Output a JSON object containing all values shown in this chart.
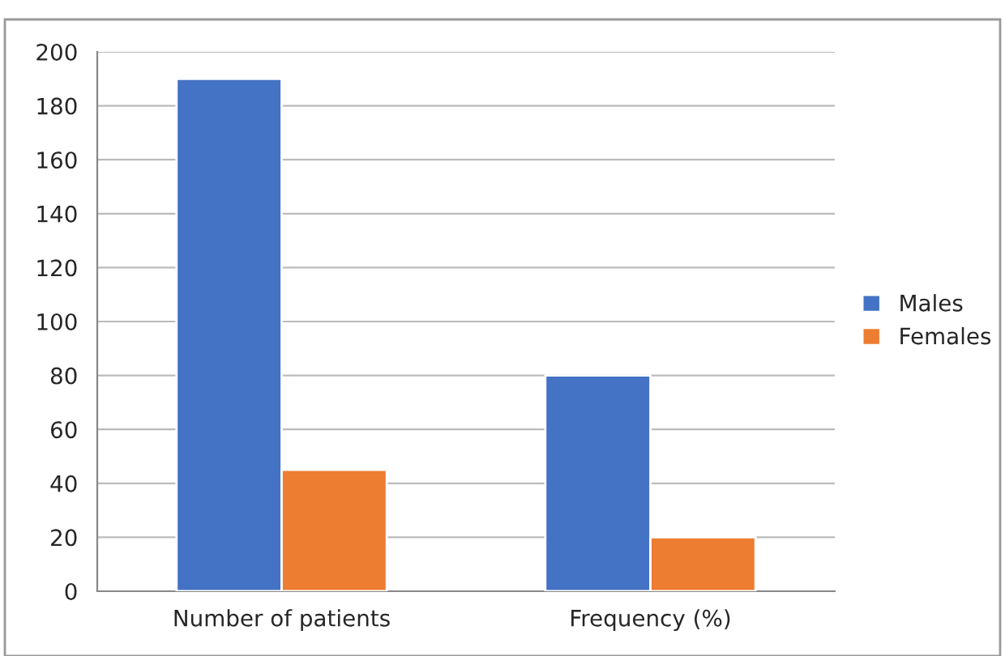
{
  "chart_data": {
    "type": "bar",
    "categories": [
      "Number of patients",
      "Frequency (%)"
    ],
    "series": [
      {
        "name": "Males",
        "color": "#4472c4",
        "values": [
          190,
          80
        ]
      },
      {
        "name": "Females",
        "color": "#ed7d31",
        "values": [
          45,
          20
        ]
      }
    ],
    "ylim": [
      0,
      200
    ],
    "yticks": [
      0,
      20,
      40,
      60,
      80,
      100,
      120,
      140,
      160,
      180,
      200
    ],
    "grid": "y",
    "legend": "right"
  }
}
